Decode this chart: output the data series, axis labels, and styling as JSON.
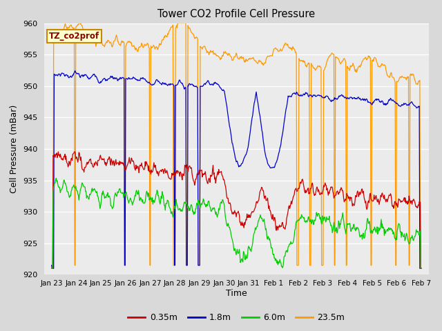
{
  "title": "Tower CO2 Profile Cell Pressure",
  "xlabel": "Time",
  "ylabel": "Cell Pressure (mBar)",
  "ylim": [
    920,
    960
  ],
  "bg_color": "#d9d9d9",
  "plot_bg_color": "#ebebeb",
  "grid_color": "#ffffff",
  "legend_label": "TZ_co2prof",
  "series": {
    "0.35m": {
      "color": "#cc0000",
      "lw": 0.9
    },
    "1.8m": {
      "color": "#0000cc",
      "lw": 0.9
    },
    "6.0m": {
      "color": "#00cc00",
      "lw": 0.9
    },
    "23.5m": {
      "color": "#ff9900",
      "lw": 0.9
    }
  },
  "xtick_labels": [
    "Jan 23",
    "Jan 24",
    "Jan 25",
    "Jan 26",
    "Jan 27",
    "Jan 28",
    "Jan 29",
    "Jan 30",
    "Jan 31",
    "Feb 1",
    "Feb 2",
    "Feb 3",
    "Feb 4",
    "Feb 5",
    "Feb 6",
    "Feb 7"
  ],
  "xtick_positions": [
    0,
    1,
    2,
    3,
    4,
    5,
    6,
    7,
    8,
    9,
    10,
    11,
    12,
    13,
    14,
    15
  ]
}
